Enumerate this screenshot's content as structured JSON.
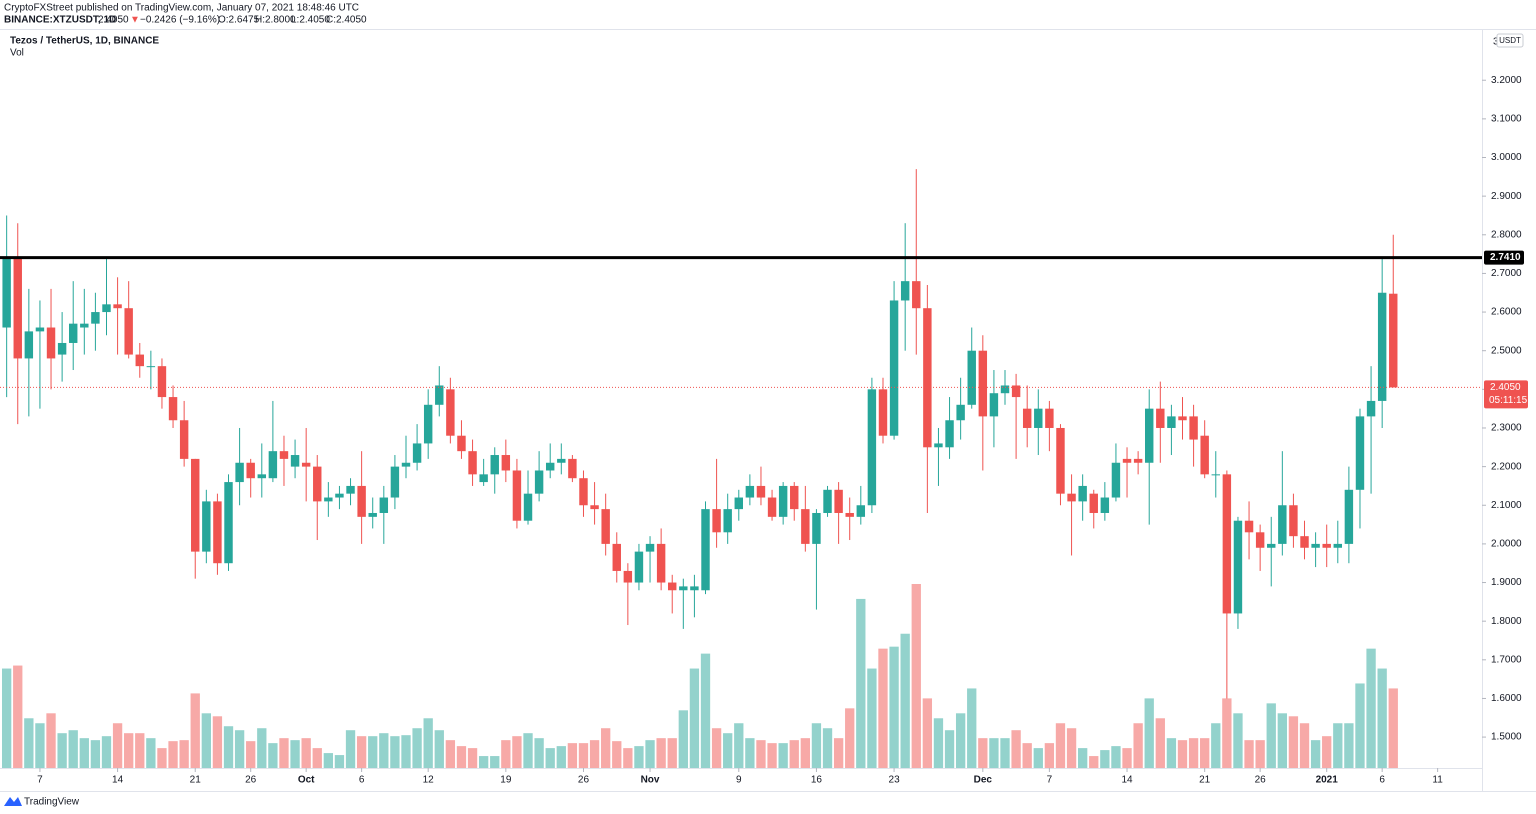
{
  "header": {
    "publisher": "CryptoFXStreet published on TradingView.com, January 07, 2021 18:48:46 UTC",
    "symbol": "BINANCE:XTZUSDT, 1D",
    "price": "2.4050",
    "arrow": "▼",
    "change": "−0.2426 (−9.16%)",
    "open": "O:2.6475",
    "high": "H:2.8000",
    "low": "L:2.4050",
    "close": "C:2.4050"
  },
  "legend": {
    "title": "Tezos / TetherUS, 1D, BINANCE",
    "volume": "Vol"
  },
  "axis_currency": "USDT",
  "axis_top_partial": "3",
  "footer": "TradingView",
  "chart_data": {
    "type": "candlestick",
    "ylim": [
      1.42,
      3.33
    ],
    "yticks": [
      {
        "value": 1.5,
        "label": "1.5000"
      },
      {
        "value": 1.6,
        "label": "1.6000"
      },
      {
        "value": 1.7,
        "label": "1.7000"
      },
      {
        "value": 1.8,
        "label": "1.8000"
      },
      {
        "value": 1.9,
        "label": "1.9000"
      },
      {
        "value": 2.0,
        "label": "2.0000"
      },
      {
        "value": 2.1,
        "label": "2.1000"
      },
      {
        "value": 2.2,
        "label": "2.2000"
      },
      {
        "value": 2.3,
        "label": "2.3000"
      },
      {
        "value": 2.4,
        "label": "2.4000"
      },
      {
        "value": 2.5,
        "label": "2.5000"
      },
      {
        "value": 2.6,
        "label": "2.6000"
      },
      {
        "value": 2.7,
        "label": "2.7000"
      },
      {
        "value": 2.8,
        "label": "2.8000"
      },
      {
        "value": 2.9,
        "label": "2.9000"
      },
      {
        "value": 3.0,
        "label": "3.0000"
      },
      {
        "value": 3.1,
        "label": "3.1000"
      },
      {
        "value": 3.2,
        "label": "3.2000"
      }
    ],
    "xlim": [
      -0.6,
      133
    ],
    "xticks": [
      {
        "value": 3,
        "label": "7"
      },
      {
        "value": 10,
        "label": "14"
      },
      {
        "value": 17,
        "label": "21"
      },
      {
        "value": 22,
        "label": "26"
      },
      {
        "value": 27,
        "label": "Oct"
      },
      {
        "value": 32,
        "label": "6"
      },
      {
        "value": 38,
        "label": "12"
      },
      {
        "value": 45,
        "label": "19"
      },
      {
        "value": 52,
        "label": "26"
      },
      {
        "value": 58,
        "label": "Nov"
      },
      {
        "value": 66,
        "label": "9"
      },
      {
        "value": 73,
        "label": "16"
      },
      {
        "value": 80,
        "label": "23"
      },
      {
        "value": 88,
        "label": "Dec"
      },
      {
        "value": 94,
        "label": "7"
      },
      {
        "value": 101,
        "label": "14"
      },
      {
        "value": 108,
        "label": "21"
      },
      {
        "value": 113,
        "label": "26"
      },
      {
        "value": 119,
        "label": "2021"
      },
      {
        "value": 124,
        "label": "6"
      },
      {
        "value": 129,
        "label": "11"
      }
    ],
    "up_color": "#26a69a",
    "down_color": "#ef5350",
    "volume_up_color": "#93d2cc",
    "volume_down_color": "#f7a9a7",
    "level": {
      "value": 2.741,
      "label": "2.7410",
      "color": "#000000"
    },
    "last_price": {
      "value": 2.405,
      "label": "2.4050",
      "countdown": "05:11:15"
    },
    "open": [
      2.56,
      2.74,
      2.48,
      2.55,
      2.56,
      2.49,
      2.52,
      2.56,
      2.57,
      2.6,
      2.62,
      2.61,
      2.49,
      2.46,
      2.46,
      2.38,
      2.32,
      2.22,
      1.98,
      2.11,
      1.95,
      2.16,
      2.21,
      2.17,
      2.17,
      2.24,
      2.2,
      2.21,
      2.2,
      2.11,
      2.12,
      2.13,
      2.15,
      2.07,
      2.08,
      2.12,
      2.2,
      2.21,
      2.26,
      2.36,
      2.4,
      2.28,
      2.24,
      2.16,
      2.18,
      2.23,
      2.19,
      2.06,
      2.13,
      2.19,
      2.21,
      2.22,
      2.17,
      2.1,
      2.09,
      2.0,
      1.93,
      1.9,
      1.98,
      2.0,
      1.9,
      1.88,
      1.88,
      1.88,
      2.09,
      2.03,
      2.09,
      2.12,
      2.15,
      2.12,
      2.07,
      2.15,
      2.09,
      2.0,
      2.08,
      2.14,
      2.08,
      2.07,
      2.1,
      2.4,
      2.28,
      2.63,
      2.68,
      2.61,
      2.25,
      2.25,
      2.32,
      2.36,
      2.5,
      2.33,
      2.39,
      2.41,
      2.35,
      2.3,
      2.35,
      2.3,
      2.13,
      2.11,
      2.13,
      2.08,
      2.12,
      2.22,
      2.22,
      2.21,
      2.35,
      2.3,
      2.33,
      2.33,
      2.28,
      2.18,
      2.18,
      1.82,
      2.06,
      2.03,
      1.99,
      2.0,
      2.1,
      2.02,
      1.99,
      2.0,
      1.99,
      2.0,
      2.14,
      2.33,
      2.37,
      2.6475
    ],
    "high": [
      2.85,
      2.83,
      2.66,
      2.63,
      2.66,
      2.6,
      2.68,
      2.66,
      2.65,
      2.74,
      2.69,
      2.68,
      2.52,
      2.5,
      2.48,
      2.41,
      2.37,
      2.22,
      2.14,
      2.13,
      2.18,
      2.3,
      2.22,
      2.26,
      2.37,
      2.28,
      2.27,
      2.3,
      2.23,
      2.16,
      2.15,
      2.17,
      2.24,
      2.12,
      2.15,
      2.23,
      2.28,
      2.31,
      2.4,
      2.46,
      2.43,
      2.32,
      2.27,
      2.22,
      2.25,
      2.27,
      2.22,
      2.19,
      2.24,
      2.26,
      2.26,
      2.23,
      2.19,
      2.16,
      2.13,
      2.03,
      1.95,
      2.0,
      2.02,
      2.04,
      1.92,
      1.91,
      1.92,
      2.11,
      2.22,
      2.13,
      2.14,
      2.18,
      2.2,
      2.14,
      2.16,
      2.16,
      2.15,
      2.09,
      2.15,
      2.16,
      2.12,
      2.15,
      2.43,
      2.43,
      2.68,
      2.83,
      2.97,
      2.67,
      2.3,
      2.38,
      2.43,
      2.56,
      2.54,
      2.45,
      2.45,
      2.44,
      2.41,
      2.4,
      2.37,
      2.31,
      2.18,
      2.18,
      2.14,
      2.16,
      2.26,
      2.25,
      2.24,
      2.4,
      2.42,
      2.36,
      2.38,
      2.36,
      2.32,
      2.24,
      2.19,
      2.07,
      2.11,
      2.05,
      2.07,
      2.24,
      2.13,
      2.06,
      2.03,
      2.05,
      2.06,
      2.2,
      2.35,
      2.46,
      2.74,
      2.8
    ],
    "low": [
      2.38,
      2.31,
      2.33,
      2.35,
      2.4,
      2.42,
      2.45,
      2.49,
      2.5,
      2.54,
      2.49,
      2.48,
      2.43,
      2.4,
      2.35,
      2.3,
      2.2,
      1.91,
      1.95,
      1.92,
      1.93,
      2.1,
      2.12,
      2.12,
      2.16,
      2.15,
      2.17,
      2.11,
      2.01,
      2.07,
      2.09,
      2.1,
      2.0,
      2.04,
      2.0,
      2.09,
      2.17,
      2.19,
      2.22,
      2.33,
      2.26,
      2.22,
      2.15,
      2.15,
      2.13,
      2.16,
      2.04,
      2.05,
      2.11,
      2.17,
      2.18,
      2.16,
      2.07,
      2.05,
      1.97,
      1.9,
      1.79,
      1.88,
      1.9,
      1.88,
      1.82,
      1.78,
      1.81,
      1.87,
      1.99,
      2.0,
      2.06,
      2.1,
      2.1,
      2.06,
      2.05,
      2.06,
      1.98,
      1.83,
      2.07,
      2.0,
      2.01,
      2.05,
      2.08,
      2.26,
      2.27,
      2.5,
      2.49,
      2.08,
      2.15,
      2.22,
      2.27,
      2.35,
      2.19,
      2.25,
      2.36,
      2.22,
      2.25,
      2.23,
      2.24,
      2.1,
      1.97,
      2.06,
      2.04,
      2.06,
      2.11,
      2.12,
      2.18,
      2.05,
      2.21,
      2.23,
      2.27,
      2.2,
      2.17,
      2.12,
      1.6,
      1.78,
      1.96,
      1.93,
      1.89,
      1.97,
      1.99,
      1.96,
      1.94,
      1.94,
      1.95,
      1.95,
      2.04,
      2.13,
      2.3,
      2.405
    ],
    "close": [
      2.74,
      2.48,
      2.55,
      2.56,
      2.48,
      2.52,
      2.57,
      2.57,
      2.6,
      2.62,
      2.61,
      2.49,
      2.46,
      2.46,
      2.38,
      2.32,
      2.22,
      1.98,
      2.11,
      1.95,
      2.16,
      2.21,
      2.17,
      2.18,
      2.24,
      2.22,
      2.23,
      2.2,
      2.11,
      2.12,
      2.13,
      2.15,
      2.07,
      2.08,
      2.12,
      2.2,
      2.21,
      2.26,
      2.36,
      2.41,
      2.28,
      2.24,
      2.18,
      2.18,
      2.23,
      2.19,
      2.06,
      2.13,
      2.19,
      2.21,
      2.22,
      2.17,
      2.1,
      2.09,
      2.0,
      1.93,
      1.9,
      1.98,
      2.0,
      1.9,
      1.88,
      1.89,
      1.89,
      2.09,
      2.03,
      2.09,
      2.12,
      2.15,
      2.12,
      2.07,
      2.15,
      2.09,
      2.0,
      2.08,
      2.14,
      2.08,
      2.07,
      2.1,
      2.4,
      2.28,
      2.63,
      2.68,
      2.61,
      2.25,
      2.26,
      2.32,
      2.36,
      2.5,
      2.33,
      2.39,
      2.41,
      2.38,
      2.3,
      2.35,
      2.3,
      2.13,
      2.11,
      2.15,
      2.08,
      2.12,
      2.21,
      2.21,
      2.21,
      2.35,
      2.3,
      2.33,
      2.32,
      2.27,
      2.18,
      2.18,
      1.82,
      2.06,
      2.03,
      1.99,
      2.0,
      2.1,
      2.02,
      1.99,
      2.0,
      1.99,
      2.0,
      2.14,
      2.33,
      2.37,
      2.65,
      2.405
    ],
    "volume": [
      100,
      103,
      50,
      45,
      55,
      35,
      38,
      30,
      28,
      32,
      45,
      35,
      35,
      30,
      20,
      27,
      28,
      75,
      55,
      52,
      42,
      38,
      27,
      40,
      25,
      30,
      28,
      30,
      20,
      15,
      13,
      38,
      32,
      32,
      35,
      32,
      33,
      40,
      50,
      38,
      28,
      22,
      20,
      12,
      12,
      28,
      32,
      35,
      30,
      20,
      22,
      25,
      25,
      28,
      40,
      27,
      20,
      22,
      28,
      30,
      30,
      58,
      100,
      115,
      40,
      35,
      45,
      30,
      28,
      25,
      25,
      28,
      30,
      45,
      40,
      30,
      60,
      170,
      100,
      120,
      122,
      135,
      185,
      70,
      50,
      38,
      55,
      80,
      30,
      30,
      30,
      38,
      25,
      20,
      25,
      45,
      40,
      20,
      12,
      18,
      22,
      20,
      45,
      70,
      50,
      30,
      28,
      30,
      30,
      45,
      70,
      55,
      28,
      28,
      65,
      55,
      52,
      45,
      28,
      32,
      45,
      45,
      85,
      120,
      100,
      80
    ]
  }
}
